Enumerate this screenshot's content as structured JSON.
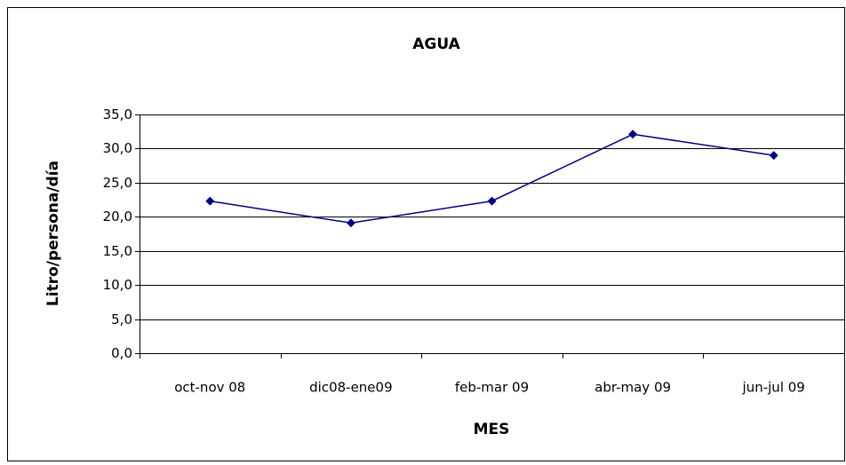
{
  "chart_data": {
    "type": "line",
    "title": "AGUA",
    "x_label": "MES",
    "y_label": "Litro/persona/día",
    "categories": [
      "oct-nov 08",
      "dic08-ene09",
      "feb-mar 09",
      "abr-may 09",
      "jun-jul 09"
    ],
    "series": [
      {
        "name": "AGUA",
        "color": "#000080",
        "values": [
          22.3,
          19.1,
          22.3,
          32.1,
          29.0
        ]
      }
    ],
    "ylim": [
      0,
      35
    ],
    "yticks": [
      {
        "value": 0,
        "label": "0,0"
      },
      {
        "value": 5,
        "label": "5,0"
      },
      {
        "value": 10,
        "label": "10,0"
      },
      {
        "value": 15,
        "label": "15,0"
      },
      {
        "value": 20,
        "label": "20,0"
      },
      {
        "value": 25,
        "label": "25,0"
      },
      {
        "value": 30,
        "label": "30,0"
      },
      {
        "value": 35,
        "label": "35,0"
      }
    ],
    "grid": true
  }
}
